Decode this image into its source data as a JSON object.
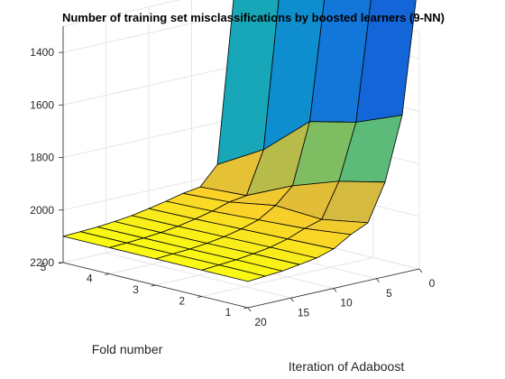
{
  "chart_data": {
    "type": "surface",
    "title": "Number of training set misclassifications by boosted learners (9-NN)",
    "xlabel": "Iteration of Adaboost",
    "ylabel": "Fold number",
    "zlabel": "",
    "x": [
      0,
      2,
      4,
      6,
      8,
      10,
      12,
      14,
      16,
      18,
      20
    ],
    "y": [
      1,
      2,
      3,
      4,
      5
    ],
    "x_ticks": [
      "0",
      "5",
      "10",
      "15",
      "20"
    ],
    "y_ticks": [
      "1",
      "2",
      "3",
      "4",
      "5"
    ],
    "z_ticks": [
      "1400",
      "1600",
      "1800",
      "2000",
      "2200"
    ],
    "zlim": [
      1300,
      2200
    ],
    "z_reversed": true,
    "colormap": "parula",
    "values": [
      [
        1070,
        1600,
        1840,
        1980,
        2010,
        2050,
        2070,
        2080,
        2090,
        2095,
        2100
      ],
      [
        1150,
        1670,
        1880,
        2010,
        2030,
        2055,
        2072,
        2082,
        2090,
        2095,
        2100
      ],
      [
        1180,
        1710,
        1940,
        2000,
        2040,
        2060,
        2075,
        2085,
        2092,
        2096,
        2100
      ],
      [
        1230,
        1860,
        2020,
        2030,
        2050,
        2065,
        2078,
        2087,
        2093,
        2097,
        2100
      ],
      [
        1310,
        1960,
        2030,
        2040,
        2055,
        2068,
        2080,
        2088,
        2094,
        2097,
        2100
      ]
    ]
  }
}
